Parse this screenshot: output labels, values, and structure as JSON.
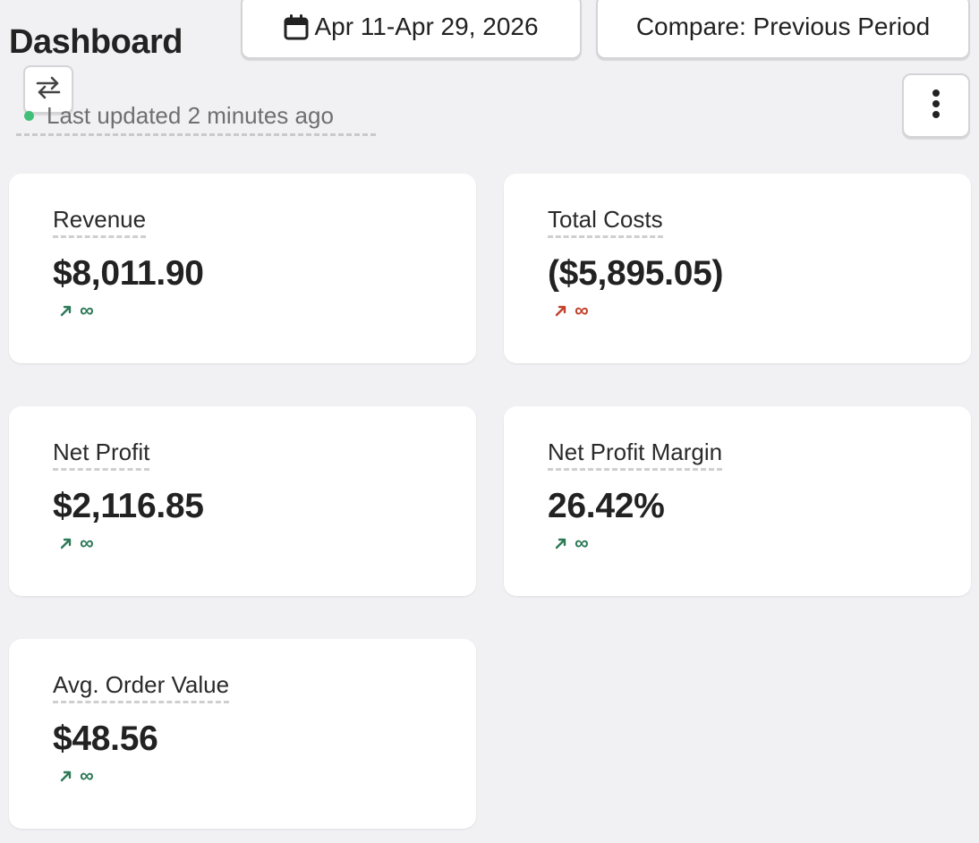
{
  "header": {
    "title": "Dashboard",
    "date_range": "Apr 11-Apr 29, 2026",
    "compare_label": "Compare: Previous Period",
    "last_updated": "Last updated 2 minutes ago"
  },
  "cards": [
    {
      "label": "Revenue",
      "value": "$8,011.90",
      "change": "∞",
      "trend": "up",
      "trend_color": "#2d7a57"
    },
    {
      "label": "Total Costs",
      "value": "($5,895.05)",
      "change": "∞",
      "trend": "up",
      "trend_color": "#c2412a"
    },
    {
      "label": "Net Profit",
      "value": "$2,116.85",
      "change": "∞",
      "trend": "up",
      "trend_color": "#2d7a57"
    },
    {
      "label": "Net Profit Margin",
      "value": "26.42%",
      "change": "∞",
      "trend": "up",
      "trend_color": "#2d7a57"
    },
    {
      "label": "Avg. Order Value",
      "value": "$48.56",
      "change": "∞",
      "trend": "up",
      "trend_color": "#2d7a57"
    }
  ],
  "icons": {
    "date_button": "calendar-icon",
    "swap_button": "swap-arrows-icon",
    "more_button": "more-vertical-icon",
    "trend": "arrow-up-right-icon"
  },
  "colors": {
    "background": "#f1f1f3",
    "status_dot": "#3fbf78",
    "positive": "#2d7a57",
    "negative": "#c2412a"
  }
}
